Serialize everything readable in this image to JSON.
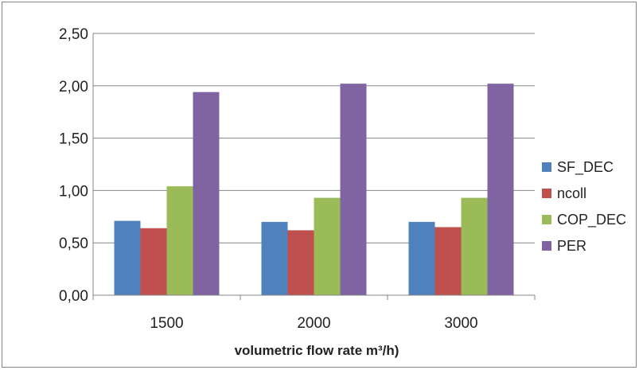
{
  "chart_data": {
    "type": "bar",
    "categories": [
      "1500",
      "2000",
      "3000"
    ],
    "series": [
      {
        "name": "SF_DEC",
        "values": [
          0.71,
          0.7,
          0.7
        ],
        "color": "#4F81BD"
      },
      {
        "name": "ncoll",
        "values": [
          0.64,
          0.62,
          0.65
        ],
        "color": "#C0504D"
      },
      {
        "name": "COP_DEC",
        "values": [
          1.04,
          0.93,
          0.93
        ],
        "color": "#9BBB59"
      },
      {
        "name": "PER",
        "values": [
          1.94,
          2.02,
          2.02
        ],
        "color": "#8064A2"
      }
    ],
    "ylim": [
      0,
      2.5
    ],
    "y_ticks": [
      "0,00",
      "0,50",
      "1,00",
      "1,50",
      "2,00",
      "2,50"
    ],
    "xlabel": "volumetric flow rate m³/h)",
    "ylabel": "",
    "title": "",
    "grid": true,
    "legend_position": "right"
  }
}
